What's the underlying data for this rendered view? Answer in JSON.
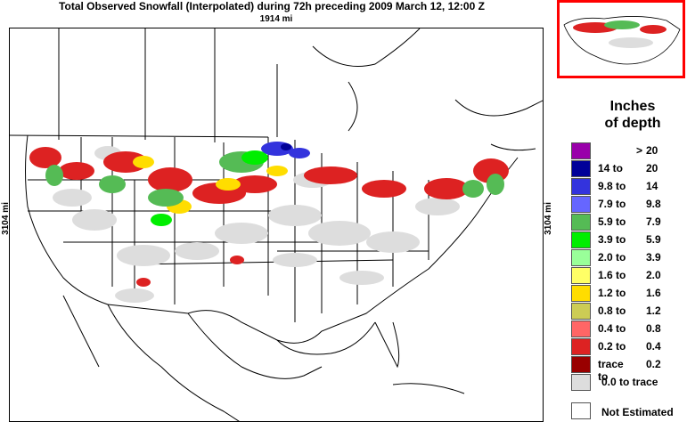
{
  "header": {
    "title": "Total Observed Snowfall (Interpolated) during 72h preceding 2009 March 12, 12:00 Z",
    "width_label": "1914 mi",
    "height_label_left": "3104 mi",
    "height_label_right": "3104 mi"
  },
  "legend": {
    "title_line1": "Inches",
    "title_line2": "of depth",
    "items": [
      {
        "from": ">",
        "to": "20",
        "color": "#9900aa"
      },
      {
        "from": "14 to",
        "to": "20",
        "color": "#000099"
      },
      {
        "from": "9.8 to",
        "to": "14",
        "color": "#3333dd"
      },
      {
        "from": "7.9 to",
        "to": "9.8",
        "color": "#6666ff"
      },
      {
        "from": "5.9 to",
        "to": "7.9",
        "color": "#55bb55"
      },
      {
        "from": "3.9 to",
        "to": "5.9",
        "color": "#00ee00"
      },
      {
        "from": "2.0 to",
        "to": "3.9",
        "color": "#99ff99"
      },
      {
        "from": "1.6 to",
        "to": "2.0",
        "color": "#ffff66"
      },
      {
        "from": "1.2 to",
        "to": "1.6",
        "color": "#ffdd00"
      },
      {
        "from": "0.8 to",
        "to": "1.2",
        "color": "#cccc55"
      },
      {
        "from": "0.4 to",
        "to": "0.8",
        "color": "#ff6666"
      },
      {
        "from": "0.2 to",
        "to": "0.4",
        "color": "#dd2222"
      },
      {
        "from": "trace to",
        "to": "0.2",
        "color": "#990000"
      },
      {
        "from": "0.0 to trace",
        "to": "",
        "color": "#dddddd"
      }
    ],
    "not_estimated": "Not Estimated"
  }
}
